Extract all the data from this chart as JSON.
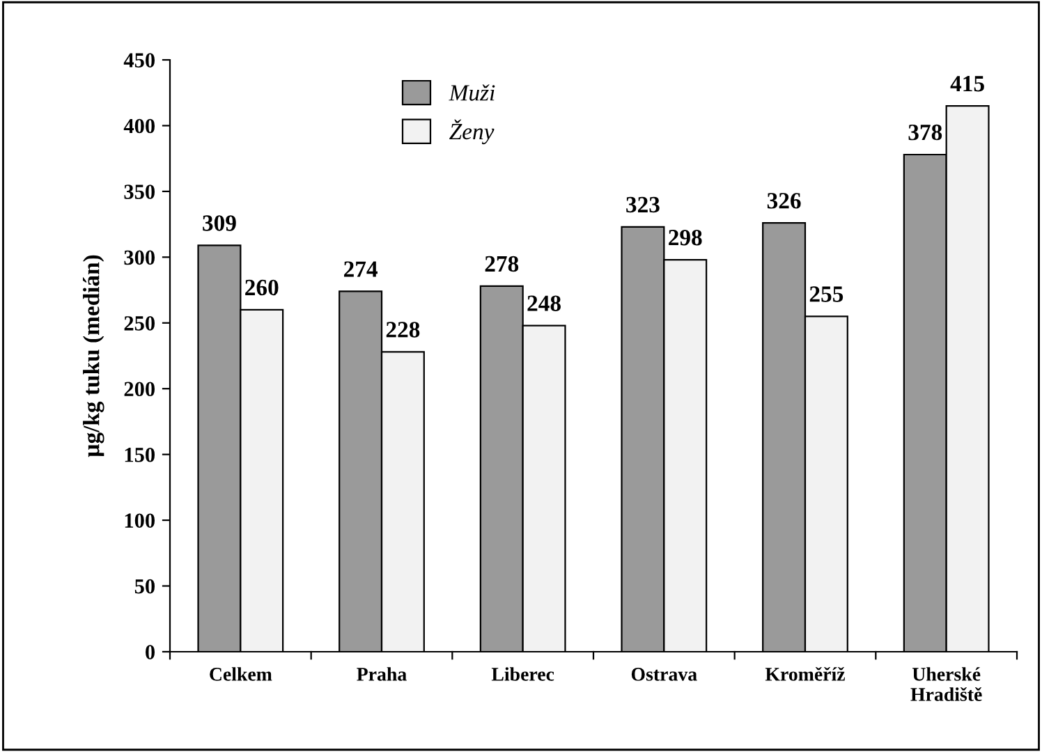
{
  "chart_data": {
    "type": "bar",
    "ylabel": "µg/kg tuku (medián)",
    "categories": [
      "Celkem",
      "Praha",
      "Liberec",
      "Ostrava",
      "Kroměříž",
      "Uherské\nHradiště"
    ],
    "series": [
      {
        "name": "Muži",
        "color": "#9a9a9a",
        "values": [
          309,
          274,
          278,
          323,
          326,
          378
        ]
      },
      {
        "name": "Ženy",
        "color": "#f2f2f2",
        "values": [
          260,
          228,
          248,
          298,
          255,
          415
        ]
      }
    ],
    "ylim": [
      0,
      450
    ],
    "yticks": [
      0,
      50,
      100,
      150,
      200,
      250,
      300,
      350,
      400,
      450
    ],
    "data_labels": true,
    "legend": "top",
    "grid": false
  }
}
